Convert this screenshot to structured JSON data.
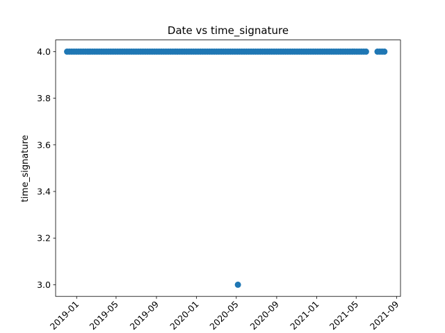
{
  "chart_data": {
    "type": "scatter",
    "title": "Date vs time_signature",
    "xlabel": "",
    "ylabel": "time_signature",
    "x_is_date": true,
    "xlim": [
      "2018-10-29",
      "2021-09-13"
    ],
    "ylim": [
      2.95,
      4.05
    ],
    "x_ticks": [
      "2019-01",
      "2019-05",
      "2019-09",
      "2020-01",
      "2020-05",
      "2020-09",
      "2021-01",
      "2021-05",
      "2021-09"
    ],
    "y_ticks": [
      "3.0",
      "3.2",
      "3.4",
      "3.6",
      "3.8",
      "4.0"
    ],
    "grid": false,
    "color": "#1f77b4",
    "series": [
      {
        "x": [
          "2018-12-03",
          "2018-12-10",
          "2018-12-17",
          "2018-12-24",
          "2018-12-31",
          "2019-01-07",
          "2019-01-14",
          "2019-01-21",
          "2019-01-28",
          "2019-02-04",
          "2019-02-11",
          "2019-02-18",
          "2019-02-25",
          "2019-03-04",
          "2019-03-11",
          "2019-03-18",
          "2019-03-25",
          "2019-04-01",
          "2019-04-08",
          "2019-04-15",
          "2019-04-22",
          "2019-04-29",
          "2019-05-06",
          "2019-05-13",
          "2019-05-20",
          "2019-05-27",
          "2019-06-03",
          "2019-06-10",
          "2019-06-17",
          "2019-06-24",
          "2019-07-01",
          "2019-07-08",
          "2019-07-15",
          "2019-07-22",
          "2019-07-29",
          "2019-08-05",
          "2019-08-12",
          "2019-08-19",
          "2019-08-26",
          "2019-09-02",
          "2019-09-09",
          "2019-09-16",
          "2019-09-23",
          "2019-09-30",
          "2019-10-07",
          "2019-10-14",
          "2019-10-21",
          "2019-10-28",
          "2019-11-04",
          "2019-11-11",
          "2019-11-18",
          "2019-11-25",
          "2019-12-02",
          "2019-12-09",
          "2019-12-16",
          "2019-12-23",
          "2019-12-30",
          "2020-01-06",
          "2020-01-13",
          "2020-01-20",
          "2020-01-27",
          "2020-02-03",
          "2020-02-10",
          "2020-02-17",
          "2020-02-24",
          "2020-03-02",
          "2020-03-09",
          "2020-03-16",
          "2020-03-23",
          "2020-03-30",
          "2020-04-06",
          "2020-04-13",
          "2020-04-20",
          "2020-04-27",
          "2020-05-04",
          "2020-05-11",
          "2020-05-18",
          "2020-05-25",
          "2020-06-01",
          "2020-06-08",
          "2020-06-15",
          "2020-06-22",
          "2020-06-29",
          "2020-07-06",
          "2020-07-13",
          "2020-07-20",
          "2020-07-27",
          "2020-08-03",
          "2020-08-10",
          "2020-08-17",
          "2020-08-24",
          "2020-08-31",
          "2020-09-07",
          "2020-09-14",
          "2020-09-21",
          "2020-09-28",
          "2020-10-05",
          "2020-10-12",
          "2020-10-19",
          "2020-10-26",
          "2020-11-02",
          "2020-11-09",
          "2020-11-16",
          "2020-11-23",
          "2020-11-30",
          "2020-12-07",
          "2020-12-14",
          "2020-12-21",
          "2020-12-28",
          "2021-01-04",
          "2021-01-11",
          "2021-01-18",
          "2021-01-25",
          "2021-02-01",
          "2021-02-08",
          "2021-02-15",
          "2021-02-22",
          "2021-03-01",
          "2021-03-08",
          "2021-03-15",
          "2021-03-22",
          "2021-03-29",
          "2021-04-05",
          "2021-04-12",
          "2021-04-19",
          "2021-04-26",
          "2021-05-03",
          "2021-05-10",
          "2021-05-17",
          "2021-05-24",
          "2021-05-31",
          "2021-07-05",
          "2021-07-12",
          "2021-07-19",
          "2021-07-26",
          "2020-05-06"
        ],
        "y": [
          4.0,
          4.0,
          4.0,
          4.0,
          4.0,
          4.0,
          4.0,
          4.0,
          4.0,
          4.0,
          4.0,
          4.0,
          4.0,
          4.0,
          4.0,
          4.0,
          4.0,
          4.0,
          4.0,
          4.0,
          4.0,
          4.0,
          4.0,
          4.0,
          4.0,
          4.0,
          4.0,
          4.0,
          4.0,
          4.0,
          4.0,
          4.0,
          4.0,
          4.0,
          4.0,
          4.0,
          4.0,
          4.0,
          4.0,
          4.0,
          4.0,
          4.0,
          4.0,
          4.0,
          4.0,
          4.0,
          4.0,
          4.0,
          4.0,
          4.0,
          4.0,
          4.0,
          4.0,
          4.0,
          4.0,
          4.0,
          4.0,
          4.0,
          4.0,
          4.0,
          4.0,
          4.0,
          4.0,
          4.0,
          4.0,
          4.0,
          4.0,
          4.0,
          4.0,
          4.0,
          4.0,
          4.0,
          4.0,
          4.0,
          4.0,
          4.0,
          4.0,
          4.0,
          4.0,
          4.0,
          4.0,
          4.0,
          4.0,
          4.0,
          4.0,
          4.0,
          4.0,
          4.0,
          4.0,
          4.0,
          4.0,
          4.0,
          4.0,
          4.0,
          4.0,
          4.0,
          4.0,
          4.0,
          4.0,
          4.0,
          4.0,
          4.0,
          4.0,
          4.0,
          4.0,
          4.0,
          4.0,
          4.0,
          4.0,
          4.0,
          4.0,
          4.0,
          4.0,
          4.0,
          4.0,
          4.0,
          4.0,
          4.0,
          4.0,
          4.0,
          4.0,
          4.0,
          4.0,
          4.0,
          4.0,
          4.0,
          4.0,
          4.0,
          4.0,
          4.0,
          4.0,
          4.0,
          4.0,
          4.0,
          4.0,
          3.0
        ]
      }
    ]
  }
}
